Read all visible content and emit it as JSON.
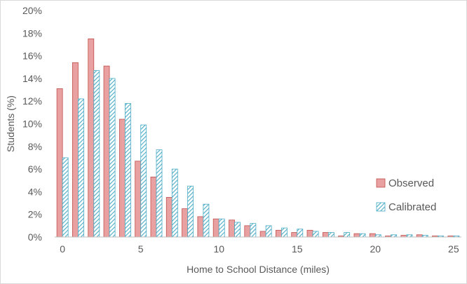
{
  "chart_data": {
    "type": "bar",
    "xlabel": "Home to School Distance (miles)",
    "ylabel": "Students (%)",
    "ylim": [
      0,
      20
    ],
    "yticks": [
      0,
      2,
      4,
      6,
      8,
      10,
      12,
      14,
      16,
      18,
      20
    ],
    "ytick_labels": [
      "0%",
      "2%",
      "4%",
      "6%",
      "8%",
      "10%",
      "12%",
      "14%",
      "16%",
      "18%",
      "20%"
    ],
    "xlim": [
      -0.5,
      25.5
    ],
    "xticks": [
      0,
      5,
      10,
      15,
      20,
      25
    ],
    "xtick_labels": [
      "0",
      "5",
      "10",
      "15",
      "20",
      "25"
    ],
    "grid": false,
    "legend_position": "right",
    "x": [
      0,
      1,
      2,
      3,
      4,
      5,
      6,
      7,
      8,
      9,
      10,
      11,
      12,
      13,
      14,
      15,
      16,
      17,
      18,
      19,
      20,
      21,
      22,
      23,
      24,
      25
    ],
    "series": [
      {
        "name": "Observed",
        "color": "#e8a0a0",
        "stroke": "#c0504d",
        "pattern": "solid",
        "values": [
          13.1,
          15.4,
          17.5,
          15.1,
          10.4,
          6.7,
          5.3,
          3.5,
          2.5,
          1.8,
          1.6,
          1.5,
          1.0,
          0.5,
          0.6,
          0.4,
          0.6,
          0.4,
          0.1,
          0.3,
          0.3,
          0.1,
          0.15,
          0.2,
          0.1,
          0.1
        ]
      },
      {
        "name": "Calibrated",
        "color": "#4bacc6",
        "stroke": "#4bacc6",
        "pattern": "hatch",
        "values": [
          7.0,
          12.2,
          14.7,
          14.0,
          11.8,
          9.9,
          7.7,
          6.0,
          4.5,
          2.9,
          1.6,
          1.3,
          1.2,
          1.0,
          0.8,
          0.7,
          0.5,
          0.4,
          0.4,
          0.3,
          0.2,
          0.2,
          0.2,
          0.15,
          0.1,
          0.1
        ]
      }
    ]
  }
}
